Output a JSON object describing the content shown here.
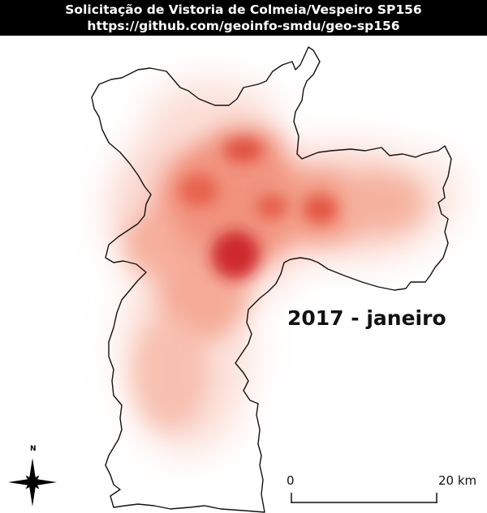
{
  "header": {
    "title": "Solicitação de Vistoria de Colmeia/Vespeiro SP156",
    "url": "https://github.com/geoinfo-smdu/geo-sp156"
  },
  "map": {
    "period_label": "2017 - janeiro",
    "heat_colors": {
      "low": "#fbe3dc",
      "mid": "#f07a63",
      "high": "#c8171b"
    },
    "boundary_color": "#111111"
  },
  "scale_bar": {
    "start_label": "0",
    "end_label": "20 km"
  },
  "north_arrow": {
    "label": "N",
    "icon": "compass-rose-icon"
  }
}
